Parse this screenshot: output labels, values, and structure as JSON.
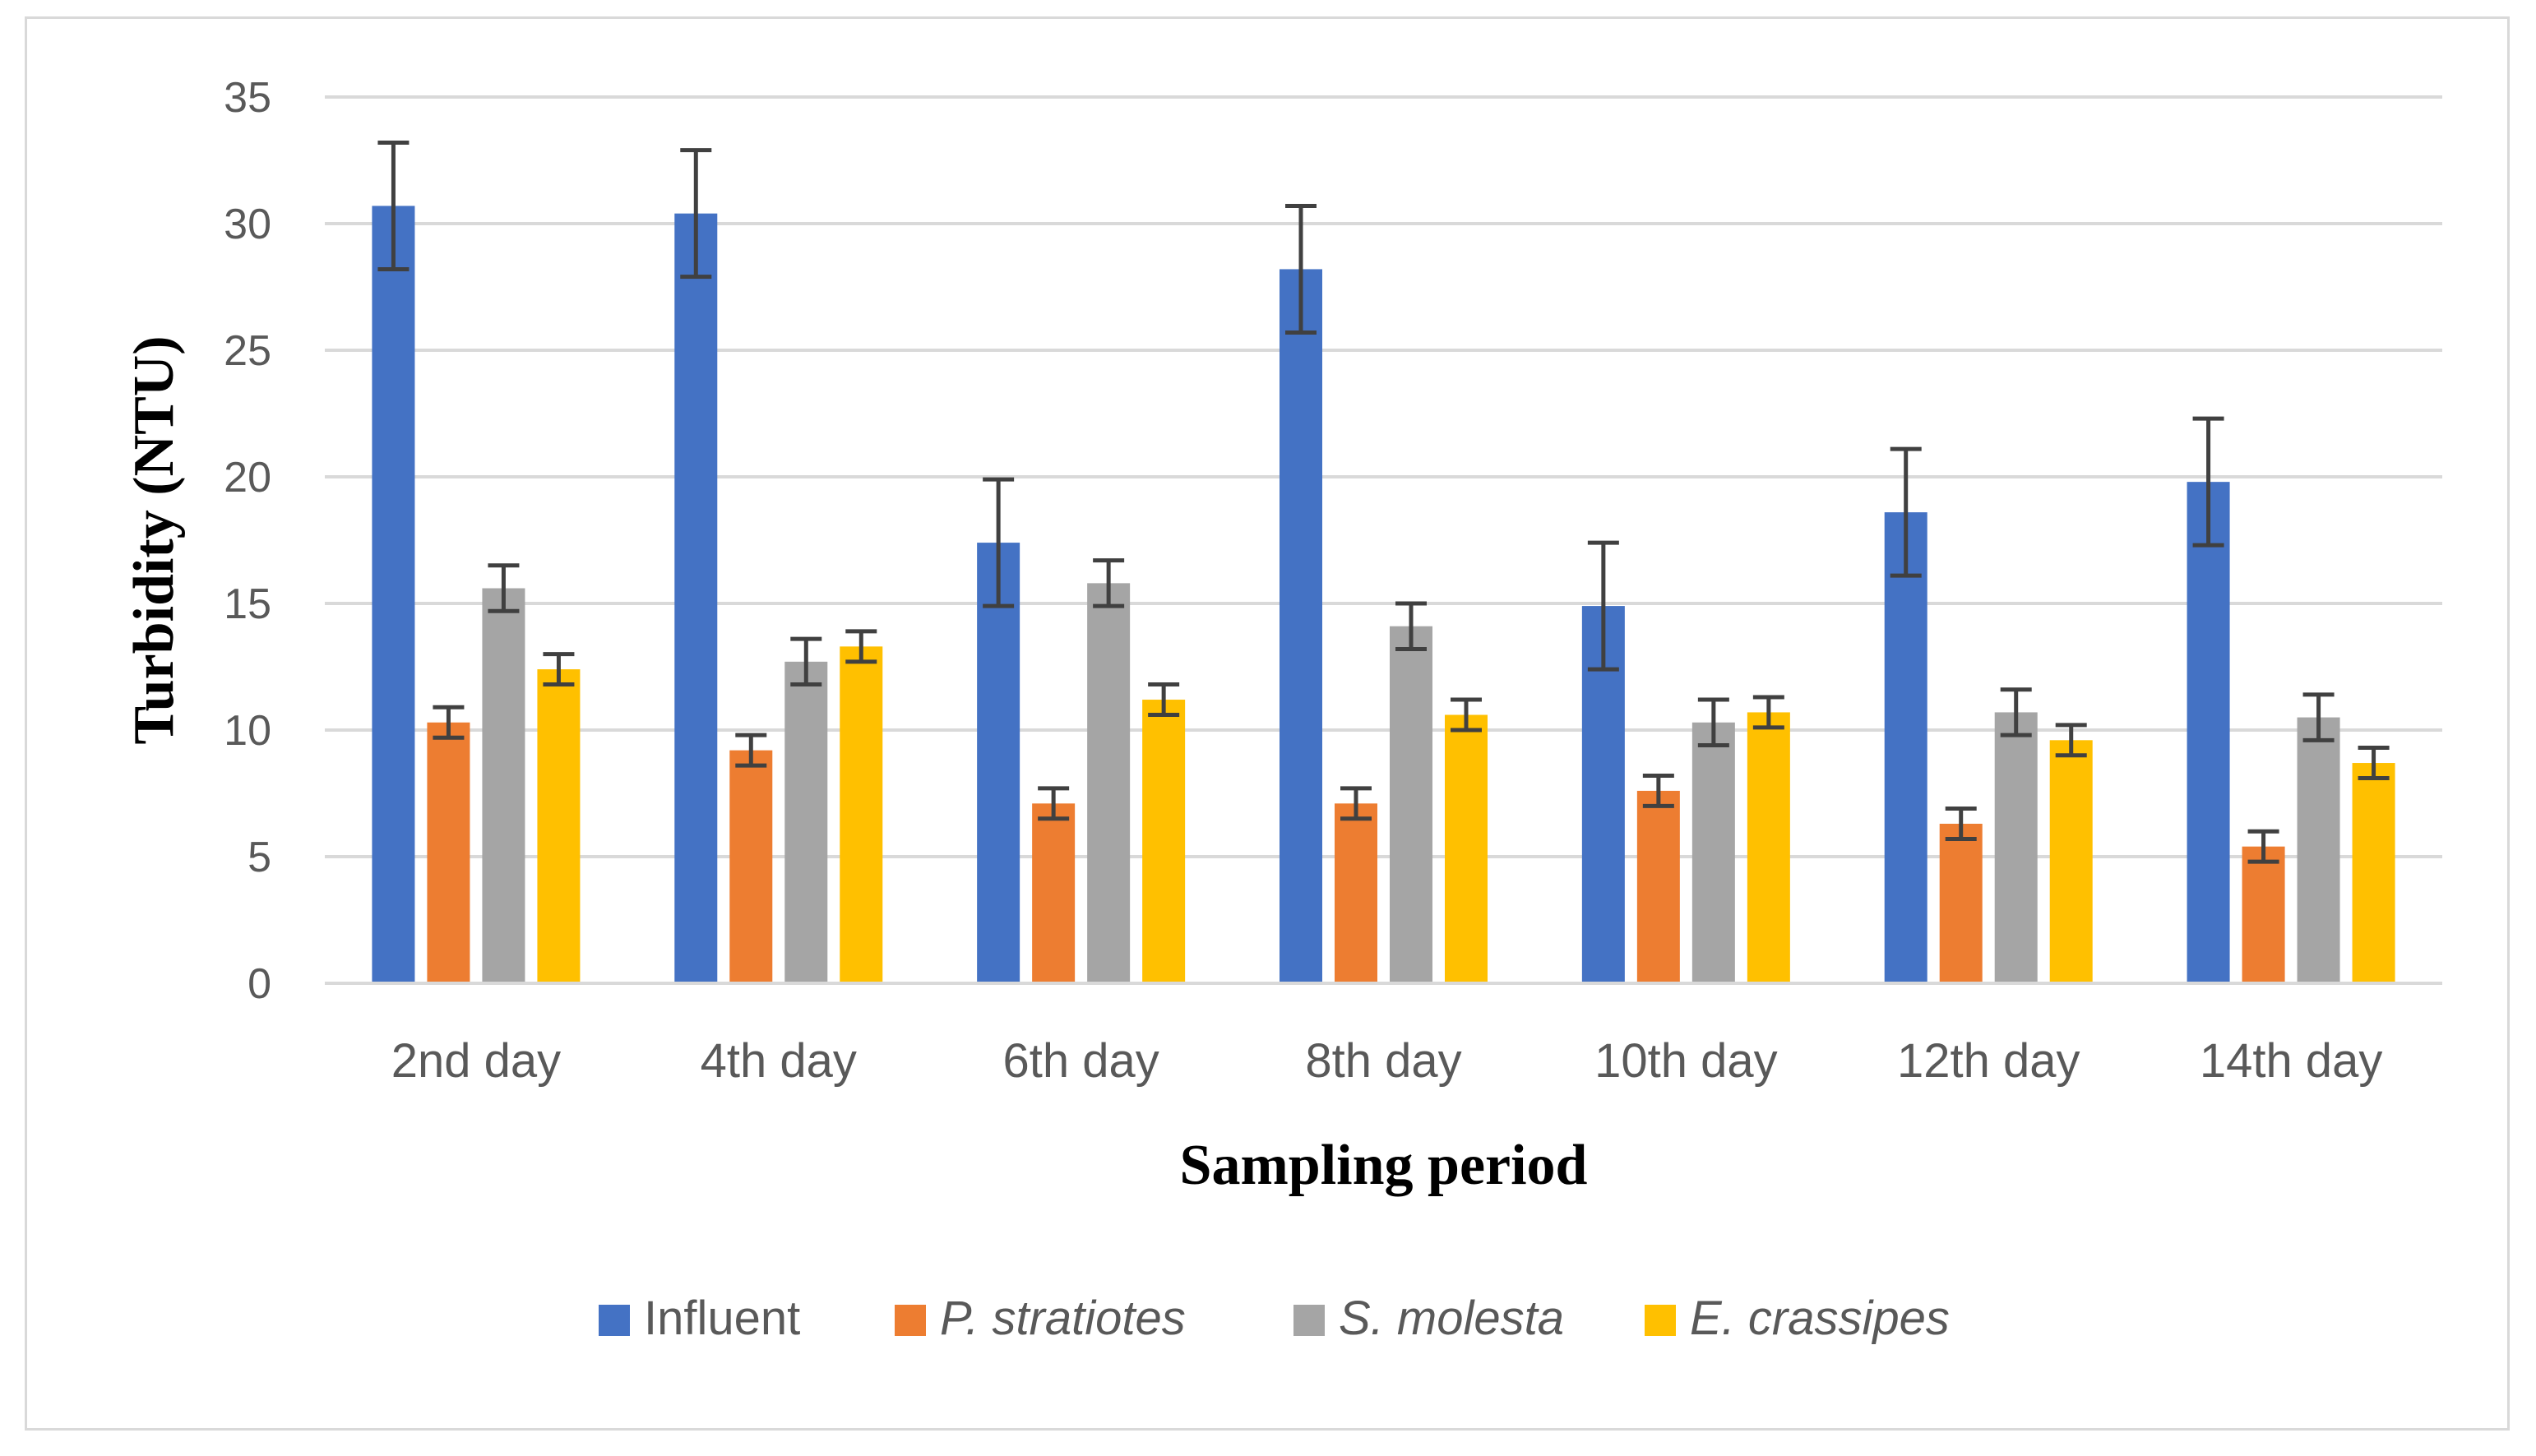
{
  "chart_data": {
    "type": "bar",
    "title": "",
    "xlabel": "Sampling period",
    "ylabel": "Turbidity (NTU)",
    "ylim": [
      0,
      35
    ],
    "yticks": [
      0,
      5,
      10,
      15,
      20,
      25,
      30,
      35
    ],
    "grid": true,
    "legend_position": "bottom",
    "categories": [
      "2nd day",
      "4th day",
      "6th day",
      "8th day",
      "10th day",
      "12th day",
      "14th day"
    ],
    "series": [
      {
        "name": "Influent",
        "italic": false,
        "color": "#4472C4",
        "values": [
          30.7,
          30.4,
          17.4,
          28.2,
          14.9,
          18.6,
          19.8
        ],
        "errors": [
          2.5,
          2.5,
          2.5,
          2.5,
          2.5,
          2.5,
          2.5
        ]
      },
      {
        "name": "P. stratiotes",
        "italic": true,
        "color": "#ED7D31",
        "values": [
          10.3,
          9.2,
          7.1,
          7.1,
          7.6,
          6.3,
          5.4
        ],
        "errors": [
          0.6,
          0.6,
          0.6,
          0.6,
          0.6,
          0.6,
          0.6
        ]
      },
      {
        "name": "S. molesta",
        "italic": true,
        "color": "#A5A5A5",
        "values": [
          15.6,
          12.7,
          15.8,
          14.1,
          10.3,
          10.7,
          10.5
        ],
        "errors": [
          0.9,
          0.9,
          0.9,
          0.9,
          0.9,
          0.9,
          0.9
        ]
      },
      {
        "name": "E. crassipes",
        "italic": true,
        "color": "#FFC000",
        "values": [
          12.4,
          13.3,
          11.2,
          10.6,
          10.7,
          9.6,
          8.7
        ],
        "errors": [
          0.6,
          0.6,
          0.6,
          0.6,
          0.6,
          0.6,
          0.6
        ]
      }
    ]
  }
}
